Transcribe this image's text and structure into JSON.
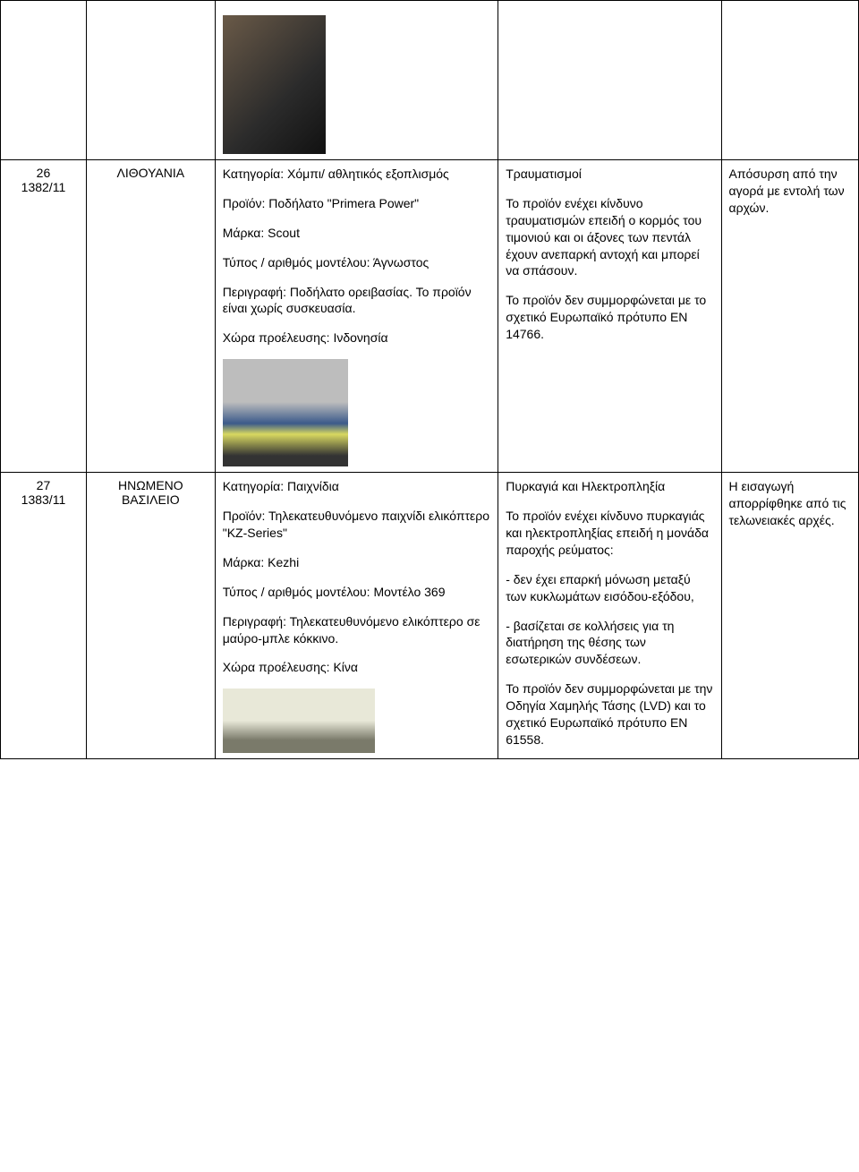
{
  "rows": [
    {
      "id_line1": "",
      "id_line2": "",
      "country": "",
      "desc_paras": [],
      "image_class": "img1",
      "risk_paras": [],
      "measure_paras": []
    },
    {
      "id_line1": "26",
      "id_line2": "1382/11",
      "country": "ΛΙΘΟΥΑΝΙΑ",
      "desc_paras": [
        "Κατηγορία: Χόμπι/ αθλητικός εξοπλισμός",
        "Προϊόν: Ποδήλατο \"Primera Power\"",
        "Μάρκα: Scout",
        "Τύπος / αριθμός μοντέλου: Άγνωστος",
        "Περιγραφή: Ποδήλατο ορειβασίας. Το προϊόν είναι χωρίς συσκευασία.",
        "Χώρα προέλευσης: Ινδονησία"
      ],
      "image_class": "img2",
      "risk_paras": [
        "Τραυματισμοί",
        "Το προϊόν ενέχει κίνδυνο τραυματισμών επειδή ο κορμός του τιμονιού και οι άξονες των πεντάλ έχουν ανεπαρκή αντοχή και μπορεί να σπάσουν.",
        "Το προϊόν δεν συμμορφώνεται με το σχετικό Ευρωπαϊκό πρότυπο EN 14766."
      ],
      "measure_paras": [
        "Απόσυρση από την αγορά με εντολή των αρχών."
      ]
    },
    {
      "id_line1": "27",
      "id_line2": "1383/11",
      "country": "ΗΝΩΜΕΝΟ ΒΑΣΙΛΕΙΟ",
      "desc_paras": [
        "Κατηγορία: Παιχνίδια",
        "Προϊόν: Τηλεκατευθυνόμενο παιχνίδι ελικόπτερο \"KZ-Series\"",
        "Μάρκα: Kezhi",
        "Τύπος / αριθμός μοντέλου: Μοντέλο 369",
        "Περιγραφή: Τηλεκατευθυνόμενο ελικόπτερο σε μαύρο-μπλε κόκκινο.",
        "Χώρα προέλευσης: Κίνα"
      ],
      "image_class": "img3",
      "risk_paras": [
        "Πυρκαγιά και Ηλεκτροπληξία",
        "Το προϊόν ενέχει κίνδυνο πυρκαγιάς και ηλεκτροπληξίας επειδή η μονάδα παροχής ρεύματος:",
        "- δεν έχει επαρκή μόνωση μεταξύ των κυκλωμάτων εισόδου-εξόδου,",
        "- βασίζεται σε κολλήσεις για τη διατήρηση της θέσης των εσωτερικών συνδέσεων.",
        "Το προϊόν δεν συμμορφώνεται με την Οδηγία Χαμηλής Τάσης (LVD) και το σχετικό Ευρωπαϊκό πρότυπο EN 61558."
      ],
      "measure_paras": [
        "Η εισαγωγή απορρίφθηκε από τις τελωνειακές αρχές."
      ]
    }
  ]
}
